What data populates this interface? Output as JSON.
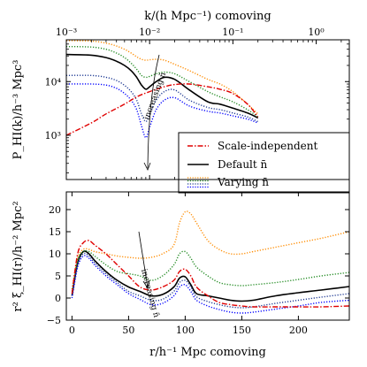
{
  "chart_data": [
    {
      "panel": "top",
      "type": "line",
      "xscale": "log",
      "yscale": "log",
      "xlabel": "k/(h Mpc⁻¹) comoving",
      "ylabel": "P_HI(k)/h⁻³ Mpc³",
      "xlim": [
        0.001,
        2.5
      ],
      "ylim": [
        150,
        60000
      ],
      "xticks": [
        {
          "value": 0.001,
          "label": "10⁻³"
        },
        {
          "value": 0.01,
          "label": "10⁻²"
        },
        {
          "value": 0.1,
          "label": "10⁻¹"
        },
        {
          "value": 1,
          "label": "10⁰"
        }
      ],
      "yticks": [
        {
          "value": 1000,
          "label": "10³"
        },
        {
          "value": 10000,
          "label": "10⁴"
        }
      ],
      "annotation": "increasing n̄",
      "legend": {
        "placement": "lower-right",
        "entries": [
          {
            "label": "Scale-independent",
            "series": "scale_independent"
          },
          {
            "label": "Default n̄",
            "series": "default"
          },
          {
            "label": "Varying n̄",
            "series": "varying"
          }
        ]
      },
      "series": [
        {
          "id": "default",
          "color": "#000000",
          "style": "solid",
          "x": [
            0.001,
            0.002,
            0.003,
            0.004,
            0.005,
            0.006,
            0.007,
            0.008,
            0.009,
            0.01,
            0.012,
            0.015,
            0.02,
            0.03,
            0.05,
            0.07,
            0.1,
            0.15,
            0.2
          ],
          "y": [
            32000,
            31000,
            28000,
            24000,
            20000,
            16000,
            12000,
            8600,
            7200,
            8000,
            10000,
            12000,
            11000,
            7000,
            4200,
            3800,
            3200,
            2600,
            2100
          ]
        },
        {
          "id": "varying_1",
          "color": "#ff8c00",
          "style": "dotted",
          "x": [
            0.001,
            0.002,
            0.003,
            0.004,
            0.005,
            0.006,
            0.007,
            0.008,
            0.009,
            0.01,
            0.012,
            0.015,
            0.02,
            0.03,
            0.05,
            0.07,
            0.1,
            0.15,
            0.2
          ],
          "y": [
            58000,
            57000,
            52000,
            46000,
            40000,
            34000,
            29000,
            26000,
            25000,
            25500,
            26000,
            25000,
            21000,
            16000,
            11000,
            9000,
            6500,
            3800,
            2500
          ]
        },
        {
          "id": "varying_2",
          "color": "#228b22",
          "style": "dotted",
          "x": [
            0.001,
            0.002,
            0.003,
            0.004,
            0.005,
            0.006,
            0.007,
            0.008,
            0.009,
            0.01,
            0.012,
            0.015,
            0.02,
            0.03,
            0.05,
            0.07,
            0.1,
            0.15,
            0.2
          ],
          "y": [
            45000,
            44000,
            40000,
            34000,
            28000,
            22000,
            17000,
            13000,
            12000,
            12500,
            14000,
            15000,
            14000,
            10000,
            6500,
            5200,
            4200,
            3000,
            2200
          ]
        },
        {
          "id": "varying_3",
          "color": "#1f3a93",
          "style": "dotted",
          "x": [
            0.001,
            0.002,
            0.003,
            0.004,
            0.005,
            0.006,
            0.007,
            0.008,
            0.009,
            0.01,
            0.012,
            0.015,
            0.02,
            0.03,
            0.05,
            0.07,
            0.1,
            0.15,
            0.2
          ],
          "y": [
            13000,
            13000,
            12000,
            10500,
            8500,
            6500,
            4500,
            2500,
            1800,
            2500,
            4500,
            6500,
            7000,
            4500,
            3300,
            3000,
            2600,
            2200,
            1800
          ]
        },
        {
          "id": "varying_4",
          "color": "#0000ff",
          "style": "dotted",
          "x": [
            0.001,
            0.002,
            0.003,
            0.004,
            0.005,
            0.006,
            0.007,
            0.008,
            0.009,
            0.01,
            0.012,
            0.015,
            0.02,
            0.03,
            0.05,
            0.07,
            0.1,
            0.15,
            0.2
          ],
          "y": [
            9000,
            9000,
            8600,
            7500,
            6000,
            4500,
            3000,
            1500,
            900,
            1400,
            3000,
            4500,
            5000,
            3500,
            2800,
            2600,
            2300,
            2000,
            1700
          ]
        },
        {
          "id": "scale_independent",
          "color": "#e00000",
          "style": "dashdot",
          "x": [
            0.001,
            0.002,
            0.003,
            0.005,
            0.007,
            0.01,
            0.015,
            0.02,
            0.03,
            0.05,
            0.07,
            0.1,
            0.15,
            0.2
          ],
          "y": [
            1000,
            1700,
            2500,
            3800,
            5200,
            6500,
            8000,
            8800,
            9000,
            8000,
            7200,
            6000,
            3800,
            2200
          ]
        }
      ]
    },
    {
      "panel": "bottom",
      "type": "line",
      "xlabel": "r/h⁻¹ Mpc comoving",
      "ylabel": "r² ξ_HI(r)/h⁻² Mpc²",
      "xlim": [
        -5,
        245
      ],
      "ylim": [
        -5,
        24
      ],
      "xticks": [
        {
          "value": 0,
          "label": "0"
        },
        {
          "value": 50,
          "label": "50"
        },
        {
          "value": 100,
          "label": "100"
        },
        {
          "value": 150,
          "label": "150"
        },
        {
          "value": 200,
          "label": "200"
        }
      ],
      "yticks": [
        {
          "value": -5,
          "label": "−5"
        },
        {
          "value": 0,
          "label": "0"
        },
        {
          "value": 5,
          "label": "5"
        },
        {
          "value": 10,
          "label": "10"
        },
        {
          "value": 15,
          "label": "15"
        },
        {
          "value": 20,
          "label": "20"
        }
      ],
      "annotation": "increasing n̄",
      "series": [
        {
          "id": "default",
          "color": "#000000",
          "style": "solid",
          "x": [
            0,
            5,
            10,
            15,
            20,
            30,
            40,
            50,
            60,
            70,
            80,
            90,
            95,
            100,
            105,
            110,
            120,
            130,
            140,
            150,
            160,
            180,
            200,
            220,
            245
          ],
          "y": [
            0.5,
            8,
            10.5,
            10,
            8.5,
            6,
            4,
            2.5,
            1.5,
            0.5,
            0.8,
            2.5,
            4.5,
            4.8,
            3,
            1,
            0.5,
            0,
            -0.5,
            -0.7,
            -0.5,
            0.5,
            1.2,
            1.8,
            2.6
          ]
        },
        {
          "id": "varying_1",
          "color": "#ff8c00",
          "style": "dotted",
          "x": [
            0,
            5,
            10,
            15,
            20,
            30,
            40,
            50,
            60,
            70,
            80,
            90,
            95,
            100,
            105,
            110,
            120,
            130,
            140,
            150,
            160,
            180,
            200,
            220,
            245
          ],
          "y": [
            2,
            9,
            11,
            11,
            10.5,
            10,
            9.5,
            9.2,
            9,
            9.2,
            10,
            12,
            17,
            19.5,
            19,
            17,
            13,
            11,
            10,
            10,
            10.5,
            11.5,
            12.5,
            13.5,
            15
          ]
        },
        {
          "id": "varying_2",
          "color": "#228b22",
          "style": "dotted",
          "x": [
            0,
            5,
            10,
            15,
            20,
            30,
            40,
            50,
            60,
            70,
            80,
            90,
            95,
            100,
            105,
            110,
            120,
            130,
            140,
            150,
            160,
            180,
            200,
            220,
            245
          ],
          "y": [
            1.5,
            8.5,
            10.5,
            10.5,
            9.5,
            7.5,
            6,
            5.5,
            5,
            4,
            5,
            7.5,
            10,
            10.5,
            9,
            7,
            5,
            3.5,
            3,
            2.8,
            3,
            3.5,
            4.2,
            5,
            5.8
          ]
        },
        {
          "id": "varying_3",
          "color": "#1f3a93",
          "style": "dotted",
          "x": [
            0,
            5,
            10,
            15,
            20,
            30,
            40,
            50,
            60,
            70,
            80,
            90,
            95,
            100,
            105,
            110,
            120,
            130,
            140,
            150,
            160,
            180,
            200,
            220,
            245
          ],
          "y": [
            0.5,
            7.5,
            10,
            9.5,
            8,
            5.5,
            3.5,
            1.5,
            0.5,
            -0.5,
            -0.3,
            1.5,
            3.5,
            4,
            2.5,
            0.3,
            -0.8,
            -1.5,
            -2,
            -2.2,
            -2,
            -1.2,
            -0.5,
            0.2,
            1
          ]
        },
        {
          "id": "varying_4",
          "color": "#0000ff",
          "style": "dotted",
          "x": [
            0,
            5,
            10,
            15,
            20,
            30,
            40,
            50,
            60,
            70,
            80,
            90,
            95,
            100,
            105,
            110,
            120,
            130,
            140,
            150,
            160,
            180,
            200,
            220,
            245
          ],
          "y": [
            0,
            7,
            9.5,
            9,
            7.5,
            5,
            3,
            1,
            -0.3,
            -1.5,
            -1.2,
            0.5,
            2.5,
            3,
            1.5,
            -0.5,
            -1.8,
            -2.6,
            -3.2,
            -3.4,
            -3.2,
            -2.5,
            -1.8,
            -1,
            -0.5
          ]
        },
        {
          "id": "scale_independent",
          "color": "#e00000",
          "style": "dashdot",
          "x": [
            0,
            5,
            10,
            15,
            20,
            30,
            40,
            50,
            60,
            70,
            80,
            90,
            95,
            100,
            105,
            110,
            120,
            130,
            140,
            150,
            160,
            180,
            200,
            220,
            245
          ],
          "y": [
            1,
            10,
            12.5,
            13,
            12,
            10,
            7.5,
            5,
            2.5,
            1.8,
            2.5,
            4,
            6,
            6.5,
            5,
            2.5,
            0.5,
            -1,
            -1.5,
            -1.8,
            -2,
            -2,
            -2,
            -2,
            -1.8
          ]
        }
      ]
    }
  ]
}
